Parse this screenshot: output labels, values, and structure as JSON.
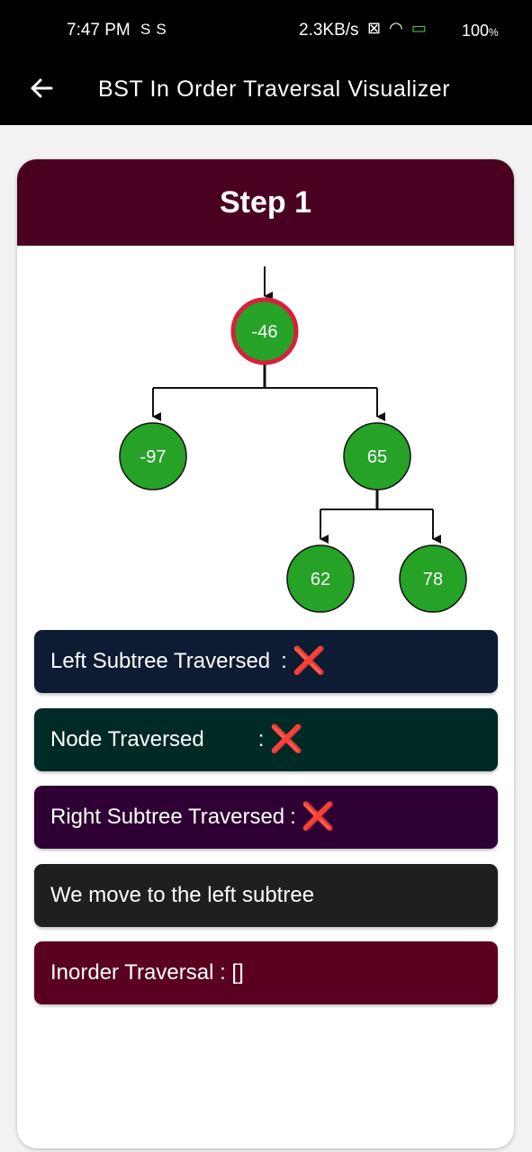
{
  "status_bar": {
    "time": "7:47 PM",
    "sim_icons": "SS",
    "speed": "2.3KB/s",
    "battery": "100",
    "battery_unit": "%"
  },
  "app_bar": {
    "title": "BST In Order Traversal Visualizer"
  },
  "step": {
    "title": "Step 1"
  },
  "tree": {
    "nodes": [
      {
        "value": "-46",
        "current": true
      },
      {
        "value": "-97",
        "current": false
      },
      {
        "value": "65",
        "current": false
      },
      {
        "value": "62",
        "current": false
      },
      {
        "value": "78",
        "current": false
      }
    ],
    "node_fill": "#26a227",
    "current_border": "#d6203c"
  },
  "panels": {
    "left_subtree": {
      "label": "Left Subtree Traversed",
      "sep": ":",
      "mark": "❌",
      "bg": "#0d1b33"
    },
    "node": {
      "label": "Node Traversed",
      "sep": ":",
      "mark": "❌",
      "bg": "#002a26"
    },
    "right_subtree": {
      "label": "Right Subtree Traversed",
      "sep": ":",
      "mark": "❌",
      "bg": "#2e0033"
    },
    "message": {
      "text": "We move to the left subtree",
      "bg": "#1f1f1f"
    },
    "inorder": {
      "text": "Inorder Traversal : []",
      "bg": "#5a0020"
    }
  }
}
